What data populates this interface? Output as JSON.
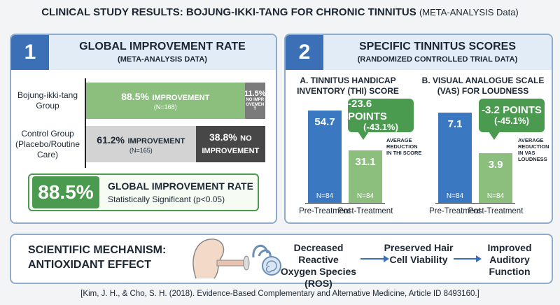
{
  "title": "CLINICAL STUDY RESULTS: BOJUNG-IKKI-TANG FOR CHRONIC TINNITUS",
  "title_suffix": "(META-ANALYSIS Data)",
  "panel1": {
    "number": "1",
    "title": "GLOBAL IMPROVEMENT RATE",
    "subtitle": "(META-ANALYSIS DATA)",
    "summary": {
      "value_label": "88.5%",
      "title": "GLOBAL IMPROVEMENT RATE",
      "note": "Statistically Significant (p<0.05)"
    }
  },
  "panel2": {
    "number": "2",
    "title": "SPECIFIC TINNITUS SCORES",
    "subtitle": "(RANDOMIZED CONTROLLED TRIAL DATA)"
  },
  "mechanism": {
    "title": "SCIENTIFIC MECHANISM: ANTIOXIDANT EFFECT",
    "steps": [
      "Decreased Reactive Oxygen Species (ROS)",
      "Preserved Hair Cell Viability",
      "Improved Auditory Function"
    ]
  },
  "citation": "[Kim, J. H., & Cho, S. H. (2018). Evidence-Based Complementary and Alternative Medicine, Article ID 8493160.]",
  "chart_data": [
    {
      "type": "stacked_barh",
      "categories": [
        "Bojung-ikki-tang Group",
        "Control Group (Placebo/Routine Care)"
      ],
      "n_labels": [
        "(N=168)",
        "(N=165)"
      ],
      "xlim": [
        0,
        100
      ],
      "series": [
        {
          "name": "IMPROVEMENT",
          "colors": [
            "#8cbf7e",
            "#d3d3d3"
          ],
          "values": [
            88.5,
            61.2
          ],
          "value_labels": [
            "88.5%",
            "61.2%"
          ]
        },
        {
          "name": "NO IMPROVEMENT",
          "colors": [
            "#7b7b7b",
            "#474747"
          ],
          "values": [
            11.5,
            38.8
          ],
          "value_labels": [
            "11.5%",
            "38.8%"
          ]
        }
      ]
    },
    {
      "type": "bar",
      "title": "A. TINNITUS HANDICAP INVENTORY (THI) SCORE",
      "categories": [
        "Pre-Treatment",
        "Post-Treatment"
      ],
      "values": [
        54.7,
        31.1
      ],
      "colors": [
        "#3a78c2",
        "#8cbf7e"
      ],
      "n_labels": [
        "N=84",
        "N=84"
      ],
      "ylim": [
        0,
        60
      ],
      "annotation": {
        "change": "-23.6 POINTS",
        "percent": "(-43.1%)",
        "note": "AVERAGE REDUCTION IN THI SCORE"
      }
    },
    {
      "type": "bar",
      "title": "B. VISUAL ANALOGUE SCALE (VAS) FOR LOUDNESS",
      "categories": [
        "Pre-Treatment",
        "Post-Treatment"
      ],
      "values": [
        7.1,
        3.9
      ],
      "colors": [
        "#3a78c2",
        "#8cbf7e"
      ],
      "n_labels": [
        "N=84",
        "N=84"
      ],
      "ylim": [
        0,
        8
      ],
      "annotation": {
        "change": "-3.2 POINTS",
        "percent": "(-45.1%)",
        "note": "AVERAGE REDUCTION IN VAS LOUDNESS"
      }
    }
  ]
}
